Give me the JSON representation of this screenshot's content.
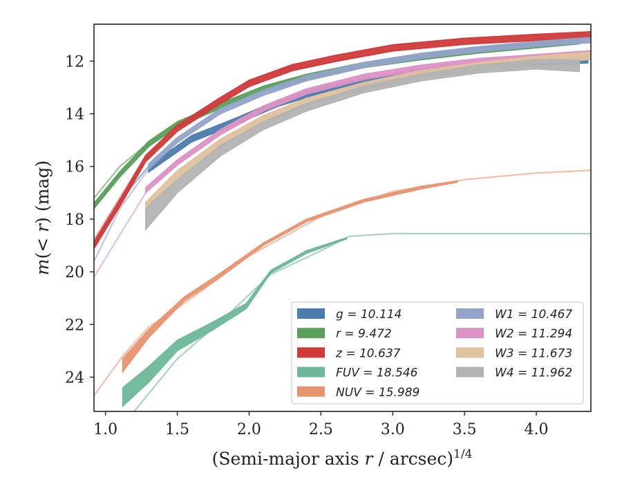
{
  "chart_data": {
    "type": "line",
    "title": "",
    "xlabel": "(Semi-major axis r / arcsec)^1/4",
    "ylabel": "m(< r) (mag)",
    "xlim": [
      0.92,
      4.38
    ],
    "ylim": [
      25.3,
      10.6
    ],
    "y_inverted": true,
    "grid": false,
    "legend_position": "lower-right",
    "x_ticks": [
      "1.0",
      "1.5",
      "2.0",
      "2.5",
      "3.0",
      "3.5",
      "4.0"
    ],
    "y_ticks": [
      "12",
      "14",
      "16",
      "18",
      "20",
      "22",
      "24"
    ],
    "series": [
      {
        "name": "g = 10.114",
        "color": "#4c7cac",
        "faint": [
          [
            0.92,
            19.0
          ],
          [
            1.1,
            17.3
          ],
          [
            1.3,
            16.0
          ]
        ],
        "band": [
          [
            1.3,
            16.1
          ],
          [
            1.6,
            14.95
          ],
          [
            1.9,
            14.3
          ],
          [
            2.2,
            13.6
          ],
          [
            2.5,
            13.1
          ],
          [
            2.8,
            12.8
          ],
          [
            3.2,
            12.4
          ],
          [
            3.6,
            12.2
          ],
          [
            4.0,
            12.05
          ],
          [
            4.36,
            11.95
          ]
        ],
        "width": 0.12
      },
      {
        "name": "r = 9.472",
        "color": "#5aa05a",
        "faint": [
          [
            0.92,
            17.2
          ],
          [
            1.1,
            16.0
          ],
          [
            1.3,
            15.1
          ]
        ],
        "band": [
          [
            0.92,
            17.5
          ],
          [
            1.1,
            16.3
          ],
          [
            1.3,
            15.15
          ],
          [
            1.5,
            14.4
          ],
          [
            1.8,
            13.7
          ],
          [
            2.1,
            13.05
          ],
          [
            2.4,
            12.6
          ],
          [
            2.8,
            12.15
          ],
          [
            3.2,
            11.85
          ],
          [
            3.6,
            11.6
          ],
          [
            4.0,
            11.4
          ],
          [
            4.3,
            11.25
          ]
        ],
        "width": 0.1
      },
      {
        "name": "z = 10.637",
        "color": "#d03a3a",
        "faint": [
          [
            0.92,
            18.8
          ],
          [
            1.1,
            17.2
          ],
          [
            1.28,
            15.6
          ]
        ],
        "band": [
          [
            0.92,
            19.0
          ],
          [
            1.1,
            17.4
          ],
          [
            1.28,
            15.7
          ],
          [
            1.5,
            14.55
          ],
          [
            1.8,
            13.5
          ],
          [
            2.0,
            12.85
          ],
          [
            2.3,
            12.25
          ],
          [
            2.6,
            11.9
          ],
          [
            3.0,
            11.5
          ],
          [
            3.5,
            11.25
          ],
          [
            4.0,
            11.1
          ],
          [
            4.38,
            11.0
          ]
        ],
        "width": 0.12
      },
      {
        "name": "FUV = 18.546",
        "color": "#6eb89a",
        "faint": [
          [
            1.2,
            25.3
          ],
          [
            1.5,
            23.3
          ],
          [
            1.8,
            21.9
          ],
          [
            2.15,
            20.1
          ],
          [
            2.5,
            19.2
          ],
          [
            2.7,
            18.65
          ],
          [
            3.0,
            18.55
          ],
          [
            3.5,
            18.55
          ],
          [
            4.38,
            18.55
          ]
        ],
        "band_lower": [
          [
            1.12,
            25.1
          ],
          [
            1.3,
            24.2
          ],
          [
            1.5,
            23.0
          ],
          [
            1.75,
            22.2
          ],
          [
            1.98,
            21.4
          ],
          [
            2.15,
            20.05
          ],
          [
            2.4,
            19.3
          ],
          [
            2.68,
            18.75
          ]
        ],
        "band_upper": [
          [
            1.12,
            24.4
          ],
          [
            1.3,
            23.6
          ],
          [
            1.5,
            22.6
          ],
          [
            1.75,
            21.9
          ],
          [
            1.98,
            21.2
          ],
          [
            2.15,
            19.95
          ],
          [
            2.4,
            19.2
          ],
          [
            2.68,
            18.7
          ]
        ]
      },
      {
        "name": "NUV = 15.989",
        "color": "#e99470",
        "faint": [
          [
            0.92,
            24.7
          ],
          [
            1.12,
            23.2
          ],
          [
            1.3,
            22.1
          ],
          [
            1.6,
            21.0
          ],
          [
            2.0,
            19.4
          ],
          [
            2.5,
            17.9
          ],
          [
            3.0,
            16.95
          ],
          [
            3.5,
            16.5
          ],
          [
            4.0,
            16.25
          ],
          [
            4.38,
            16.15
          ]
        ],
        "band_lower": [
          [
            1.12,
            23.8
          ],
          [
            1.3,
            22.5
          ],
          [
            1.55,
            21.1
          ],
          [
            1.8,
            20.2
          ],
          [
            2.1,
            19.0
          ],
          [
            2.4,
            18.1
          ],
          [
            2.8,
            17.35
          ],
          [
            3.2,
            16.85
          ],
          [
            3.45,
            16.6
          ]
        ],
        "band_upper": [
          [
            1.12,
            23.3
          ],
          [
            1.3,
            22.2
          ],
          [
            1.55,
            20.95
          ],
          [
            1.8,
            20.05
          ],
          [
            2.1,
            18.9
          ],
          [
            2.4,
            18.0
          ],
          [
            2.8,
            17.25
          ],
          [
            3.2,
            16.75
          ],
          [
            3.45,
            16.55
          ]
        ]
      },
      {
        "name": "W1 = 10.467",
        "color": "#93a3c9",
        "faint": [
          [
            0.92,
            19.6
          ],
          [
            1.1,
            17.6
          ],
          [
            1.3,
            16.1
          ]
        ],
        "band": [
          [
            1.3,
            16.0
          ],
          [
            1.5,
            15.0
          ],
          [
            1.8,
            13.9
          ],
          [
            2.1,
            13.2
          ],
          [
            2.4,
            12.65
          ],
          [
            2.8,
            12.15
          ],
          [
            3.2,
            11.8
          ],
          [
            3.6,
            11.55
          ],
          [
            4.0,
            11.35
          ],
          [
            4.38,
            11.2
          ]
        ],
        "width": 0.1
      },
      {
        "name": "W2 = 11.294",
        "color": "#dc92c4",
        "faint": [
          [
            0.92,
            20.2
          ],
          [
            1.1,
            18.6
          ],
          [
            1.28,
            17.0
          ]
        ],
        "band": [
          [
            1.28,
            16.9
          ],
          [
            1.5,
            15.85
          ],
          [
            1.8,
            14.7
          ],
          [
            2.1,
            13.8
          ],
          [
            2.4,
            13.15
          ],
          [
            2.8,
            12.6
          ],
          [
            3.2,
            12.25
          ],
          [
            3.6,
            12.0
          ],
          [
            4.0,
            11.85
          ],
          [
            4.38,
            11.7
          ]
        ],
        "width": 0.1
      },
      {
        "name": "W3 = 11.673",
        "color": "#dfc29e",
        "band": [
          [
            1.28,
            17.5
          ],
          [
            1.5,
            16.3
          ],
          [
            1.8,
            15.1
          ],
          [
            2.1,
            14.2
          ],
          [
            2.4,
            13.55
          ],
          [
            2.8,
            12.95
          ],
          [
            3.2,
            12.5
          ],
          [
            3.6,
            12.2
          ],
          [
            4.0,
            11.95
          ],
          [
            4.38,
            11.8
          ]
        ],
        "width": 0.14
      },
      {
        "name": "W4 = 11.962",
        "color": "#b3b3b3",
        "band_lower": [
          [
            1.28,
            18.4
          ],
          [
            1.5,
            17.0
          ],
          [
            1.8,
            15.6
          ],
          [
            2.1,
            14.6
          ],
          [
            2.4,
            13.9
          ],
          [
            2.8,
            13.2
          ],
          [
            3.2,
            12.75
          ],
          [
            3.6,
            12.45
          ],
          [
            4.0,
            12.3
          ],
          [
            4.3,
            12.4
          ]
        ],
        "band_upper": [
          [
            1.28,
            17.6
          ],
          [
            1.5,
            16.5
          ],
          [
            1.8,
            15.2
          ],
          [
            2.1,
            14.3
          ],
          [
            2.4,
            13.6
          ],
          [
            2.8,
            12.95
          ],
          [
            3.2,
            12.5
          ],
          [
            3.6,
            12.15
          ],
          [
            4.0,
            11.95
          ],
          [
            4.3,
            11.95
          ]
        ]
      }
    ]
  }
}
